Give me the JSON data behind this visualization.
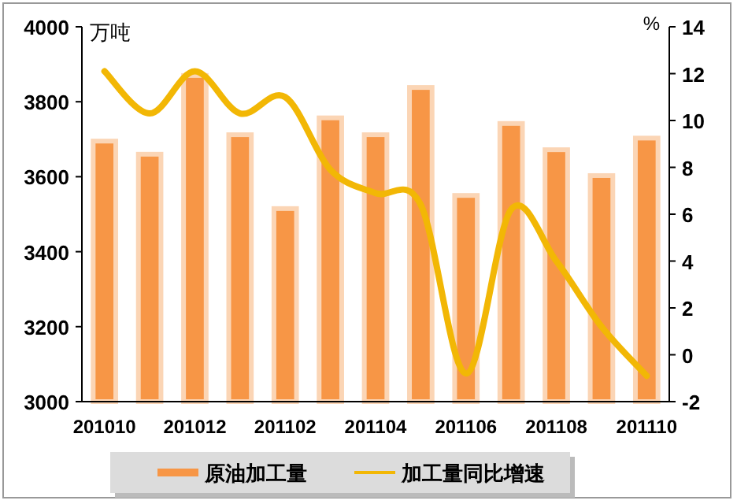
{
  "chart_data": {
    "type": "bar",
    "ylabel": "万吨",
    "y2label": "%",
    "categories": [
      "201010",
      null,
      "201012",
      null,
      "201102",
      null,
      "201104",
      null,
      "201106",
      null,
      "201108",
      null,
      "201110"
    ],
    "series": [
      {
        "name": "原油加工量",
        "color": "#f79646",
        "values": [
          3695,
          3660,
          3870,
          3712,
          3515,
          3757,
          3712,
          3838,
          3550,
          3742,
          3672,
          3603,
          3703
        ]
      },
      {
        "name": "加工量同比增速",
        "type": "line",
        "axis": "y2",
        "color": "#f2b705",
        "values": [
          12.1,
          10.3,
          12.1,
          10.3,
          11.0,
          7.9,
          6.9,
          6.4,
          -0.8,
          6.2,
          4.0,
          1.2,
          -0.9
        ]
      }
    ],
    "ylim": [
      3000,
      4000
    ],
    "yticks": [
      3000,
      3200,
      3400,
      3600,
      3800,
      4000
    ],
    "y2lim": [
      -2,
      14
    ],
    "y2ticks": [
      -2,
      0,
      2,
      4,
      6,
      8,
      10,
      12,
      14
    ],
    "legend": "bottom",
    "grid": false,
    "marker": "none"
  }
}
